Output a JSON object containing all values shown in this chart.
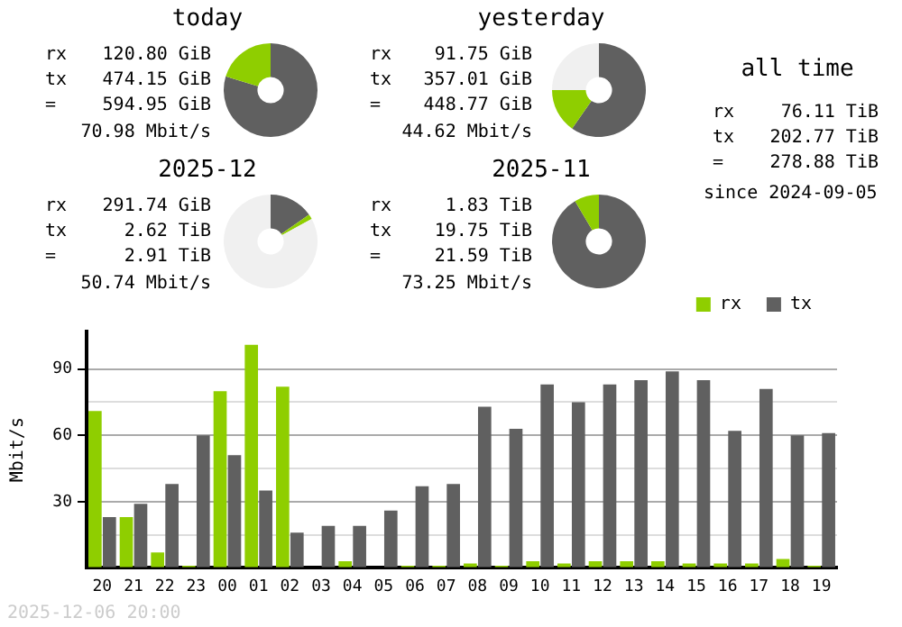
{
  "chart_data": [
    {
      "type": "donut",
      "title": "today",
      "categories": [
        null,
        null,
        null
      ],
      "values": [
        79.7,
        20.3,
        0
      ],
      "colors": [
        "#606060",
        "#8fce00",
        "#f0f0f0"
      ],
      "legend": false,
      "annotations": [
        "rx",
        "120.80 GiB",
        "tx",
        "474.15 GiB",
        "=",
        "594.95 GiB",
        "70.98 Mbit/s"
      ]
    },
    {
      "type": "donut",
      "title": "yesterday",
      "categories": [
        null,
        null,
        null
      ],
      "values": [
        59.7,
        15.3,
        25
      ],
      "colors": [
        "#606060",
        "#8fce00",
        "#f0f0f0"
      ],
      "legend": false,
      "annotations": [
        "rx",
        "91.75 GiB",
        "tx",
        "357.01 GiB",
        "=",
        "448.77 GiB",
        "44.62 Mbit/s"
      ]
    },
    {
      "type": "donut",
      "title": "2025-12",
      "categories": [
        null,
        null,
        null
      ],
      "values": [
        15.3,
        1.7,
        83
      ],
      "colors": [
        "#606060",
        "#8fce00",
        "#f0f0f0"
      ],
      "legend": false,
      "annotations": [
        "rx",
        "291.74 GiB",
        "tx",
        "2.62 TiB",
        "=",
        "2.91 TiB",
        "50.74 Mbit/s"
      ]
    },
    {
      "type": "donut",
      "title": "2025-11",
      "categories": [
        null,
        null,
        null
      ],
      "values": [
        91.5,
        8.5,
        0
      ],
      "colors": [
        "#606060",
        "#8fce00",
        "#f0f0f0"
      ],
      "legend": false,
      "annotations": [
        "rx",
        "1.83 TiB",
        "tx",
        "19.75 TiB",
        "=",
        "21.59 TiB",
        "73.25 Mbit/s"
      ]
    },
    {
      "type": "other",
      "title": "all time",
      "annotations": [
        "rx",
        "76.11 TiB",
        "tx",
        "202.77 TiB",
        "=",
        "278.88 TiB",
        "since 2024-09-05"
      ]
    },
    {
      "type": "bar",
      "ylabel": "Mbit/s",
      "categories": [
        "20",
        "21",
        "22",
        "23",
        "00",
        "01",
        "02",
        "03",
        "04",
        "05",
        "06",
        "07",
        "08",
        "09",
        "10",
        "11",
        "12",
        "13",
        "14",
        "15",
        "16",
        "17",
        "18",
        "19"
      ],
      "series": [
        {
          "name": "rx",
          "color": "#8fce00",
          "values": [
            71,
            23,
            7,
            1,
            80,
            101,
            82,
            0,
            3,
            0,
            1,
            1,
            2,
            1,
            3,
            2,
            3,
            3,
            3,
            2,
            2,
            2,
            4,
            1
          ]
        },
        {
          "name": "tx",
          "color": "#606060",
          "values": [
            23,
            29,
            38,
            60,
            51,
            35,
            16,
            19,
            19,
            26,
            37,
            38,
            73,
            63,
            83,
            75,
            83,
            85,
            89,
            85,
            62,
            81,
            60,
            61
          ]
        }
      ],
      "ylim": [
        0,
        107
      ],
      "yticks": [
        {
          "value": 0,
          "label": null
        },
        {
          "value": 15,
          "label": null
        },
        30,
        {
          "value": 45,
          "label": null
        },
        60,
        {
          "value": 75,
          "label": null
        },
        90
      ],
      "grid": "y",
      "legend": "top right",
      "annotations": [
        "2025-12-06 20:00"
      ]
    }
  ]
}
